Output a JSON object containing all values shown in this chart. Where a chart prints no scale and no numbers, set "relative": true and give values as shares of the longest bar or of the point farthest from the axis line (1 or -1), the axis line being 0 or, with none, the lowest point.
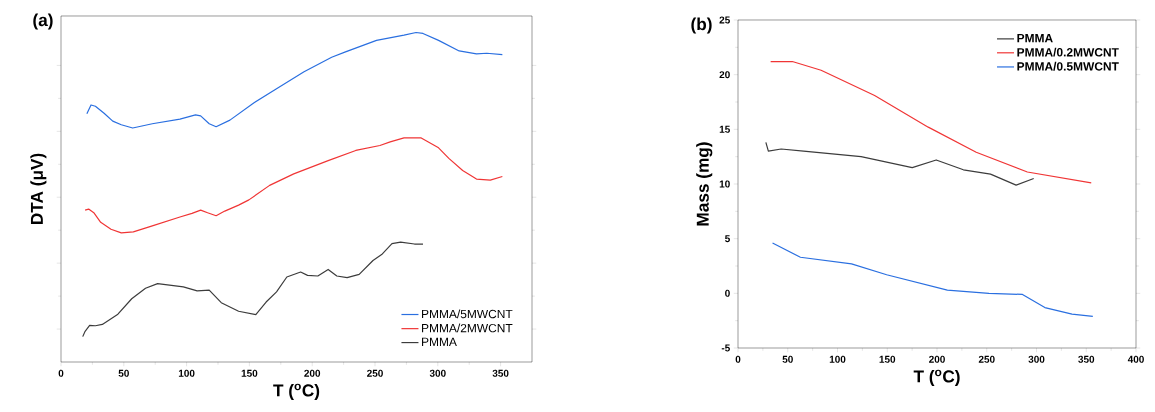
{
  "chart_data": [
    {
      "type": "line",
      "title": "(a)",
      "xlabel": "T ($^{o}$C)",
      "ylabel": "DTA (μV)",
      "relative": true,
      "xlim": [
        0,
        375
      ],
      "xticks": [
        0,
        50,
        100,
        150,
        200,
        250,
        300,
        350
      ],
      "legend": "bottom right",
      "grid": false,
      "series": [
        {
          "name": "PMMA/5MWCNT",
          "color": "#2a6fe0",
          "x": [
            20.6,
            23.9,
            27.4,
            34.3,
            41.2,
            48.0,
            57.1,
            72.7,
            94.7,
            107.1,
            111.2,
            118.0,
            123.5,
            134.5,
            153.7,
            171.6,
            193.5,
            215.5,
            226.5,
            251.2,
            273.1,
            282.7,
            288.2,
            300.6,
            317.0,
            330.8,
            339.0,
            351.4
          ],
          "values": [
            0.753,
            0.78,
            0.776,
            0.755,
            0.731,
            0.72,
            0.71,
            0.723,
            0.737,
            0.75,
            0.747,
            0.723,
            0.714,
            0.734,
            0.787,
            0.829,
            0.881,
            0.925,
            0.941,
            0.976,
            0.992,
            1,
            0.997,
            0.976,
            0.944,
            0.935,
            0.937,
            0.933
          ]
        },
        {
          "name": "PMMA/2MWCNT",
          "color": "#f03535",
          "x": [
            19.2,
            22.0,
            26.1,
            31.6,
            39.8,
            48.0,
            57.6,
            72.7,
            94.7,
            104.3,
            111.2,
            116.7,
            123.5,
            130.4,
            141.4,
            149.6,
            166.1,
            185.3,
            212.7,
            234.7,
            253.9,
            262.1,
            273.1,
            286.8,
            300.6,
            308.8,
            319.8,
            330.8,
            341.8,
            351.4
          ],
          "values": [
            0.461,
            0.464,
            0.453,
            0.424,
            0.403,
            0.392,
            0.395,
            0.413,
            0.44,
            0.451,
            0.461,
            0.453,
            0.444,
            0.458,
            0.476,
            0.492,
            0.536,
            0.571,
            0.611,
            0.642,
            0.657,
            0.668,
            0.68,
            0.68,
            0.65,
            0.618,
            0.581,
            0.555,
            0.552,
            0.563
          ]
        },
        {
          "name": "PMMA",
          "color": "#3c3c3c",
          "x": [
            17.3,
            19.2,
            22.8,
            27.4,
            32.9,
            45.3,
            56.3,
            67.3,
            76.9,
            97.4,
            108.4,
            118.0,
            127.6,
            141.4,
            155.1,
            163.3,
            171.6,
            179.8,
            190.8,
            196.3,
            204.5,
            212.7,
            219.6,
            227.8,
            237.4,
            248.4,
            255.3,
            263.5,
            270.4,
            281.4,
            288.2
          ],
          "values": [
            0.077,
            0.093,
            0.111,
            0.11,
            0.114,
            0.145,
            0.192,
            0.224,
            0.238,
            0.228,
            0.216,
            0.218,
            0.18,
            0.154,
            0.144,
            0.182,
            0.213,
            0.258,
            0.273,
            0.263,
            0.261,
            0.281,
            0.261,
            0.256,
            0.266,
            0.308,
            0.326,
            0.359,
            0.364,
            0.358,
            0.358
          ]
        }
      ]
    },
    {
      "type": "line",
      "title": "(b)",
      "xlabel": "T ($^{o}$C)",
      "ylabel": "Mass (mg)",
      "xlim": [
        0,
        400
      ],
      "xticks": [
        0,
        50,
        100,
        150,
        200,
        250,
        300,
        350,
        400
      ],
      "ylim": [
        -5,
        25
      ],
      "yticks": [
        -5,
        0,
        5,
        10,
        15,
        20,
        25
      ],
      "legend": "top right",
      "grid": false,
      "series": [
        {
          "name": "PMMA",
          "color": "#3c3c3c",
          "x": [
            28.0,
            30.5,
            43.4,
            65.9,
            123.7,
            175.1,
            199.2,
            226.5,
            253.8,
            279.5,
            297.2
          ],
          "values": [
            13.8,
            13.0,
            13.2,
            13.0,
            12.5,
            11.5,
            12.2,
            11.3,
            10.9,
            9.9,
            10.5
          ]
        },
        {
          "name": "PMMA/0.2MWCNT",
          "color": "#f03535",
          "x": [
            32.8,
            54.6,
            83.5,
            137.3,
            191.2,
            239.4,
            290.8,
            355.0
          ],
          "values": [
            21.2,
            21.2,
            20.4,
            18.1,
            15.2,
            12.9,
            11.1,
            10.1
          ]
        },
        {
          "name": "PMMA/0.5MWCNT",
          "color": "#2a6fe0",
          "x": [
            34.7,
            62.7,
            114.1,
            149.4,
            210.4,
            252.2,
            285.9,
            308.4,
            335.7,
            356.6
          ],
          "values": [
            4.6,
            3.3,
            2.7,
            1.7,
            0.3,
            0.0,
            -0.1,
            -1.3,
            -1.9,
            -2.1
          ]
        }
      ]
    }
  ]
}
